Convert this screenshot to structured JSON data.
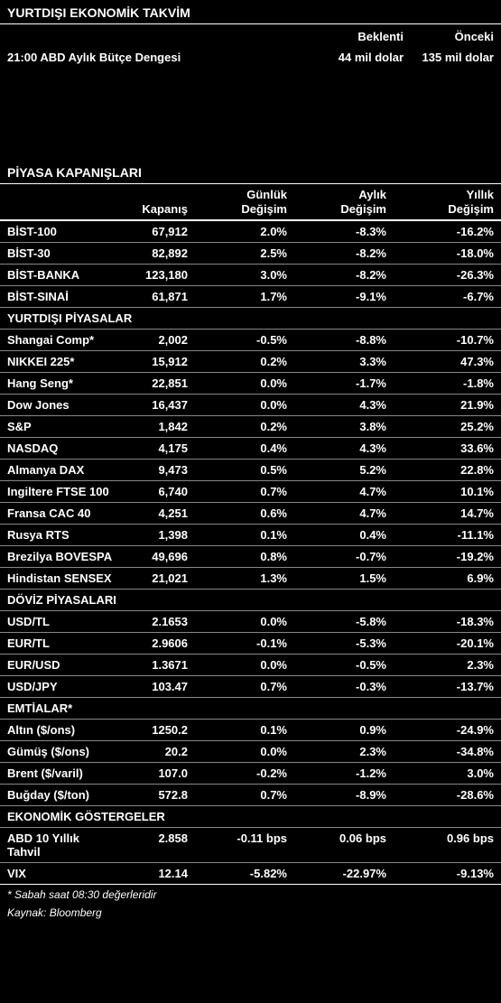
{
  "calendar": {
    "title": "YURTDIŞI EKONOMİK TAKVİM",
    "header_expect": "Beklenti",
    "header_prev": "Önceki",
    "event": "21:00 ABD Aylık Bütçe Dengesi",
    "expect": "44 mil dolar",
    "prev": "135 mil dolar"
  },
  "markets": {
    "title": "PİYASA KAPANIŞLARI",
    "col_close": "Kapanış",
    "col_daily1": "Günlük",
    "col_daily2": "Değişim",
    "col_monthly1": "Aylık",
    "col_monthly2": "Değişim",
    "col_yearly1": "Yıllık",
    "col_yearly2": "Değişim",
    "groups": [
      {
        "rows": [
          {
            "name": "BİST-100",
            "close": "67,912",
            "d": "2.0%",
            "m": "-8.3%",
            "y": "-16.2%"
          },
          {
            "name": "BİST-30",
            "close": "82,892",
            "d": "2.5%",
            "m": "-8.2%",
            "y": "-18.0%"
          },
          {
            "name": "BİST-BANKA",
            "close": "123,180",
            "d": "3.0%",
            "m": "-8.2%",
            "y": "-26.3%"
          },
          {
            "name": "BİST-SINAİ",
            "close": "61,871",
            "d": "1.7%",
            "m": "-9.1%",
            "y": "-6.7%"
          }
        ]
      },
      {
        "subhead": "YURTDIŞI PİYASALAR",
        "rows": [
          {
            "name": "Shangai Comp*",
            "close": "2,002",
            "d": "-0.5%",
            "m": "-8.8%",
            "y": "-10.7%"
          },
          {
            "name": "NIKKEI 225*",
            "close": "15,912",
            "d": "0.2%",
            "m": "3.3%",
            "y": "47.3%"
          },
          {
            "name": "Hang Seng*",
            "close": "22,851",
            "d": "0.0%",
            "m": "-1.7%",
            "y": "-1.8%"
          },
          {
            "name": "Dow Jones",
            "close": "16,437",
            "d": "0.0%",
            "m": "4.3%",
            "y": "21.9%"
          },
          {
            "name": "S&P",
            "close": "1,842",
            "d": "0.2%",
            "m": "3.8%",
            "y": "25.2%"
          },
          {
            "name": "NASDAQ",
            "close": "4,175",
            "d": "0.4%",
            "m": "4.3%",
            "y": "33.6%"
          },
          {
            "name": "Almanya  DAX",
            "close": "9,473",
            "d": "0.5%",
            "m": "5.2%",
            "y": "22.8%"
          },
          {
            "name": "Ingiltere FTSE 100",
            "close": "6,740",
            "d": "0.7%",
            "m": "4.7%",
            "y": "10.1%"
          },
          {
            "name": "Fransa CAC 40",
            "close": "4,251",
            "d": "0.6%",
            "m": "4.7%",
            "y": "14.7%"
          },
          {
            "name": "Rusya RTS",
            "close": "1,398",
            "d": "0.1%",
            "m": "0.4%",
            "y": "-11.1%"
          },
          {
            "name": "Brezilya BOVESPA",
            "close": "49,696",
            "d": "0.8%",
            "m": "-0.7%",
            "y": "-19.2%"
          },
          {
            "name": "Hindistan SENSEX",
            "close": "21,021",
            "d": "1.3%",
            "m": "1.5%",
            "y": "6.9%"
          }
        ]
      },
      {
        "subhead": "DÖVİZ PİYASALARI",
        "rows": [
          {
            "name": "USD/TL",
            "close": "2.1653",
            "d": "0.0%",
            "m": "-5.8%",
            "y": "-18.3%"
          },
          {
            "name": "EUR/TL",
            "close": "2.9606",
            "d": "-0.1%",
            "m": "-5.3%",
            "y": "-20.1%"
          },
          {
            "name": "EUR/USD",
            "close": "1.3671",
            "d": "0.0%",
            "m": "-0.5%",
            "y": "2.3%"
          },
          {
            "name": "USD/JPY",
            "close": "103.47",
            "d": "0.7%",
            "m": "-0.3%",
            "y": "-13.7%"
          }
        ]
      },
      {
        "subhead": "EMTİALAR*",
        "rows": [
          {
            "name": "Altın ($/ons)",
            "close": "1250.2",
            "d": "0.1%",
            "m": "0.9%",
            "y": "-24.9%"
          },
          {
            "name": "Gümüş ($/ons)",
            "close": "20.2",
            "d": "0.0%",
            "m": "2.3%",
            "y": "-34.8%"
          },
          {
            "name": "Brent ($/varil)",
            "close": "107.0",
            "d": "-0.2%",
            "m": "-1.2%",
            "y": "3.0%"
          },
          {
            "name": "Buğday ($/ton)",
            "close": "572.8",
            "d": "0.7%",
            "m": "-8.9%",
            "y": "-28.6%"
          }
        ]
      },
      {
        "subhead": "EKONOMİK GÖSTERGELER",
        "rows": [
          {
            "name": "ABD 10 Yıllık Tahvil",
            "close": "2.858",
            "d": "-0.11 bps",
            "m": "0.06 bps",
            "y": "0.96 bps"
          },
          {
            "name": "VIX",
            "close": "12.14",
            "d": "-5.82%",
            "m": "-22.97%",
            "y": "-9.13%"
          }
        ]
      }
    ]
  },
  "footnote1": "* Sabah saat 08:30 değerleridir",
  "footnote2": "Kaynak: Bloomberg"
}
